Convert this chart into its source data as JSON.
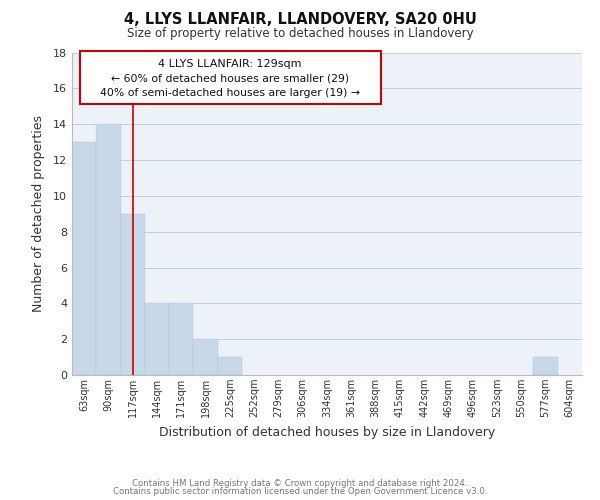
{
  "title_line1": "4, LLYS LLANFAIR, LLANDOVERY, SA20 0HU",
  "title_line2": "Size of property relative to detached houses in Llandovery",
  "xlabel": "Distribution of detached houses by size in Llandovery",
  "ylabel": "Number of detached properties",
  "bins": [
    "63sqm",
    "90sqm",
    "117sqm",
    "144sqm",
    "171sqm",
    "198sqm",
    "225sqm",
    "252sqm",
    "279sqm",
    "306sqm",
    "334sqm",
    "361sqm",
    "388sqm",
    "415sqm",
    "442sqm",
    "469sqm",
    "496sqm",
    "523sqm",
    "550sqm",
    "577sqm",
    "604sqm"
  ],
  "values": [
    13,
    14,
    9,
    4,
    4,
    2,
    1,
    0,
    0,
    0,
    0,
    0,
    0,
    0,
    0,
    0,
    0,
    0,
    0,
    1,
    0
  ],
  "bar_color": "#c8d8e8",
  "vline_x_index": 2.0,
  "vline_color": "#cc0000",
  "ylim": [
    0,
    18
  ],
  "yticks": [
    0,
    2,
    4,
    6,
    8,
    10,
    12,
    14,
    16,
    18
  ],
  "annotation_line1": "4 LLYS LLANFAIR: 129sqm",
  "annotation_line2": "← 60% of detached houses are smaller (29)",
  "annotation_line3": "40% of semi-detached houses are larger (19) →",
  "footer_line1": "Contains HM Land Registry data © Crown copyright and database right 2024.",
  "footer_line2": "Contains public sector information licensed under the Open Government Licence v3.0.",
  "grid_color": "#c0cfe0",
  "background_color": "#edf2f9"
}
